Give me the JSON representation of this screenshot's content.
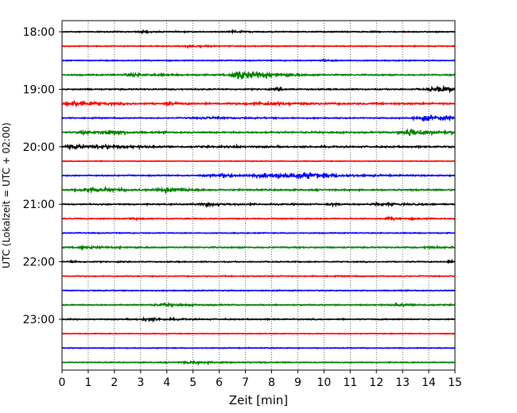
{
  "chart_data": {
    "type": "line",
    "title": "",
    "xlabel": "Zeit  [min]",
    "ylabel": "UTC (Lokalzeit = UTC + 02:00)",
    "xlim": [
      0,
      15
    ],
    "x_ticks": [
      0,
      1,
      2,
      3,
      4,
      5,
      6,
      7,
      8,
      9,
      10,
      11,
      12,
      13,
      14,
      15
    ],
    "y_tick_labels": [
      "18:00",
      "19:00",
      "20:00",
      "21:00",
      "22:00",
      "23:00"
    ],
    "grid": "vertical dotted",
    "trace_minutes": 15,
    "colors": [
      "#000000",
      "#ff0000",
      "#0000ff",
      "#008000"
    ],
    "traces": [
      {
        "start": "18:00",
        "noise": 0.45,
        "events": [
          {
            "t": 6.5,
            "amp": 1.4,
            "dur": 0.3
          },
          {
            "t": 3.0,
            "amp": 0.9,
            "dur": 0.3
          }
        ]
      },
      {
        "start": "18:15",
        "noise": 0.4,
        "events": [
          {
            "t": 4.8,
            "amp": 0.9,
            "dur": 0.6
          }
        ]
      },
      {
        "start": "18:30",
        "noise": 0.4,
        "events": [
          {
            "t": 10.0,
            "amp": 0.9,
            "dur": 0.3
          }
        ]
      },
      {
        "start": "18:45",
        "noise": 0.55,
        "events": [
          {
            "t": 6.7,
            "amp": 5.0,
            "dur": 0.7
          },
          {
            "t": 7.5,
            "amp": 1.4,
            "dur": 1.2
          },
          {
            "t": 2.5,
            "amp": 1.0,
            "dur": 1.2
          }
        ]
      },
      {
        "start": "19:00",
        "noise": 0.55,
        "events": [
          {
            "t": 14.3,
            "amp": 2.6,
            "dur": 0.9
          },
          {
            "t": 8.2,
            "amp": 1.4,
            "dur": 0.2
          }
        ]
      },
      {
        "start": "19:15",
        "noise": 0.7,
        "events": [
          {
            "t": 0.4,
            "amp": 2.3,
            "dur": 0.8
          },
          {
            "t": 4.0,
            "amp": 1.0,
            "dur": 0.3
          },
          {
            "t": 7.5,
            "amp": 1.0,
            "dur": 1.5
          }
        ]
      },
      {
        "start": "19:30",
        "noise": 0.45,
        "events": [
          {
            "t": 13.8,
            "amp": 2.6,
            "dur": 1.2
          },
          {
            "t": 5.5,
            "amp": 0.8,
            "dur": 1.5
          }
        ]
      },
      {
        "start": "19:45",
        "noise": 0.7,
        "events": [
          {
            "t": 13.2,
            "amp": 3.4,
            "dur": 0.9
          },
          {
            "t": 1.8,
            "amp": 2.6,
            "dur": 0.4
          },
          {
            "t": 0.8,
            "amp": 1.2,
            "dur": 0.6
          }
        ]
      },
      {
        "start": "20:00",
        "noise": 0.7,
        "events": [
          {
            "t": 0.3,
            "amp": 2.0,
            "dur": 0.6
          },
          {
            "t": 1.5,
            "amp": 1.2,
            "dur": 1.0
          },
          {
            "t": 6.6,
            "amp": 1.2,
            "dur": 0.2
          }
        ]
      },
      {
        "start": "20:15",
        "noise": 0.3,
        "events": []
      },
      {
        "start": "20:30",
        "noise": 0.5,
        "events": [
          {
            "t": 8.0,
            "amp": 2.3,
            "dur": 1.5
          },
          {
            "t": 9.3,
            "amp": 1.8,
            "dur": 1.0
          },
          {
            "t": 6.0,
            "amp": 1.0,
            "dur": 1.5
          }
        ]
      },
      {
        "start": "20:45",
        "noise": 0.7,
        "events": [
          {
            "t": 0.9,
            "amp": 2.3,
            "dur": 0.9
          },
          {
            "t": 4.0,
            "amp": 2.0,
            "dur": 0.7
          }
        ]
      },
      {
        "start": "21:00",
        "noise": 0.55,
        "events": [
          {
            "t": 10.3,
            "amp": 1.4,
            "dur": 0.2
          },
          {
            "t": 12.0,
            "amp": 1.0,
            "dur": 1.0
          },
          {
            "t": 5.5,
            "amp": 1.0,
            "dur": 1.0
          }
        ]
      },
      {
        "start": "21:15",
        "noise": 0.45,
        "events": [
          {
            "t": 2.6,
            "amp": 1.0,
            "dur": 0.3
          },
          {
            "t": 12.5,
            "amp": 0.9,
            "dur": 0.8
          }
        ]
      },
      {
        "start": "21:30",
        "noise": 0.4,
        "events": []
      },
      {
        "start": "21:45",
        "noise": 0.55,
        "events": [
          {
            "t": 0.8,
            "amp": 0.9,
            "dur": 1.0
          },
          {
            "t": 14.0,
            "amp": 0.8,
            "dur": 0.6
          }
        ]
      },
      {
        "start": "22:00",
        "noise": 0.45,
        "events": [
          {
            "t": 0.3,
            "amp": 0.9,
            "dur": 0.3
          },
          {
            "t": 14.8,
            "amp": 0.9,
            "dur": 0.3
          }
        ]
      },
      {
        "start": "22:15",
        "noise": 0.45,
        "events": []
      },
      {
        "start": "22:30",
        "noise": 0.4,
        "events": []
      },
      {
        "start": "22:45",
        "noise": 0.5,
        "events": [
          {
            "t": 3.8,
            "amp": 1.0,
            "dur": 1.0
          },
          {
            "t": 12.8,
            "amp": 0.9,
            "dur": 0.8
          }
        ]
      },
      {
        "start": "23:00",
        "noise": 0.5,
        "events": [
          {
            "t": 3.2,
            "amp": 1.3,
            "dur": 0.8
          }
        ]
      },
      {
        "start": "23:15",
        "noise": 0.35,
        "events": []
      },
      {
        "start": "23:30",
        "noise": 0.35,
        "events": []
      },
      {
        "start": "23:45",
        "noise": 0.4,
        "events": [
          {
            "t": 4.8,
            "amp": 0.8,
            "dur": 1.5
          }
        ]
      }
    ]
  }
}
